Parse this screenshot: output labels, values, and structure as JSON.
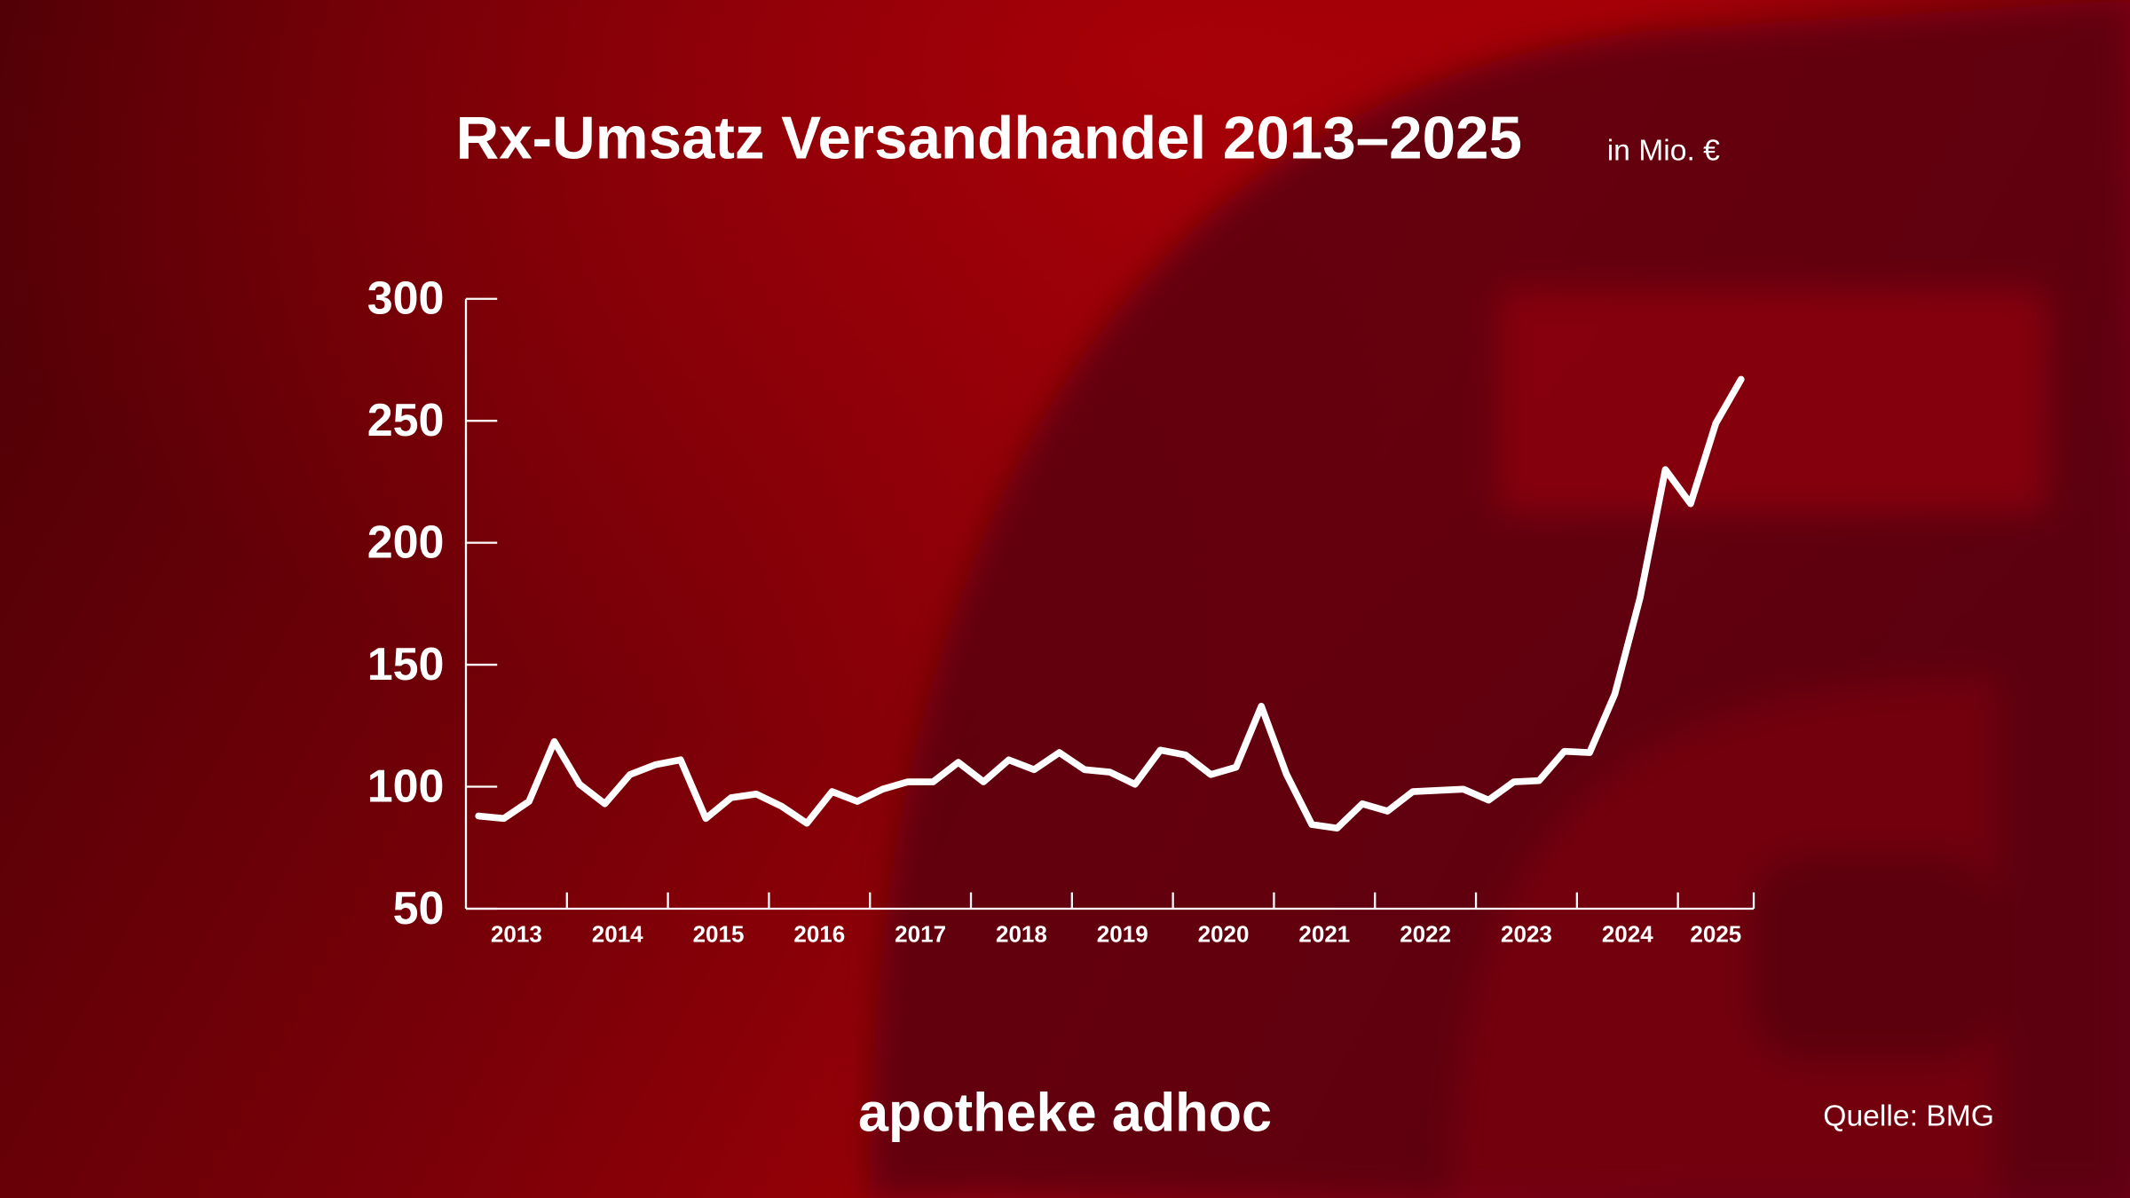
{
  "chart_data": {
    "type": "line",
    "title": "Rx-Umsatz Versandhandel 2013–2025",
    "subtitle": "in Mio. €",
    "brand": "apotheke adhoc",
    "source": "Quelle: BMG",
    "color": "#ffffff",
    "x": [
      2013.125,
      2013.375,
      2013.625,
      2013.875,
      2014.125,
      2014.375,
      2014.625,
      2014.875,
      2015.125,
      2015.375,
      2015.625,
      2015.875,
      2016.125,
      2016.375,
      2016.625,
      2016.875,
      2017.125,
      2017.375,
      2017.625,
      2017.875,
      2018.125,
      2018.375,
      2018.625,
      2018.875,
      2019.125,
      2019.375,
      2019.625,
      2019.875,
      2020.125,
      2020.375,
      2020.625,
      2020.875,
      2021.125,
      2021.375,
      2021.625,
      2021.875,
      2022.125,
      2022.375,
      2022.625,
      2022.875,
      2023.125,
      2023.375,
      2023.625,
      2023.875,
      2024.125,
      2024.375,
      2024.625,
      2024.875,
      2025.125,
      2025.375,
      2025.625
    ],
    "values": [
      88,
      87,
      94,
      118.5,
      101,
      93,
      105,
      109,
      111,
      87,
      95.5,
      97,
      92,
      85,
      98,
      94,
      99,
      102,
      102,
      110,
      102,
      111,
      107,
      114,
      107,
      106,
      101,
      115,
      113,
      105,
      108,
      133,
      105,
      84.5,
      83,
      93,
      90,
      98,
      98.5,
      99,
      94.5,
      102,
      102.5,
      114.5,
      114,
      138,
      177.5,
      230,
      216,
      249,
      267
    ],
    "xlim": [
      2013,
      2025.75
    ],
    "xticks": [
      {
        "value": 2013.5,
        "label": "2013"
      },
      {
        "value": 2014.5,
        "label": "2014"
      },
      {
        "value": 2015.5,
        "label": "2015"
      },
      {
        "value": 2016.5,
        "label": "2016"
      },
      {
        "value": 2017.5,
        "label": "2017"
      },
      {
        "value": 2018.5,
        "label": "2018"
      },
      {
        "value": 2019.5,
        "label": "2019"
      },
      {
        "value": 2020.5,
        "label": "2020"
      },
      {
        "value": 2021.5,
        "label": "2021"
      },
      {
        "value": 2022.5,
        "label": "2022"
      },
      {
        "value": 2023.5,
        "label": "2023"
      },
      {
        "value": 2024.5,
        "label": "2024"
      },
      {
        "value": 2025.375,
        "label": "2025"
      }
    ],
    "ylim": [
      50,
      300
    ],
    "yticks": [
      50,
      100,
      150,
      200,
      250,
      300
    ]
  }
}
